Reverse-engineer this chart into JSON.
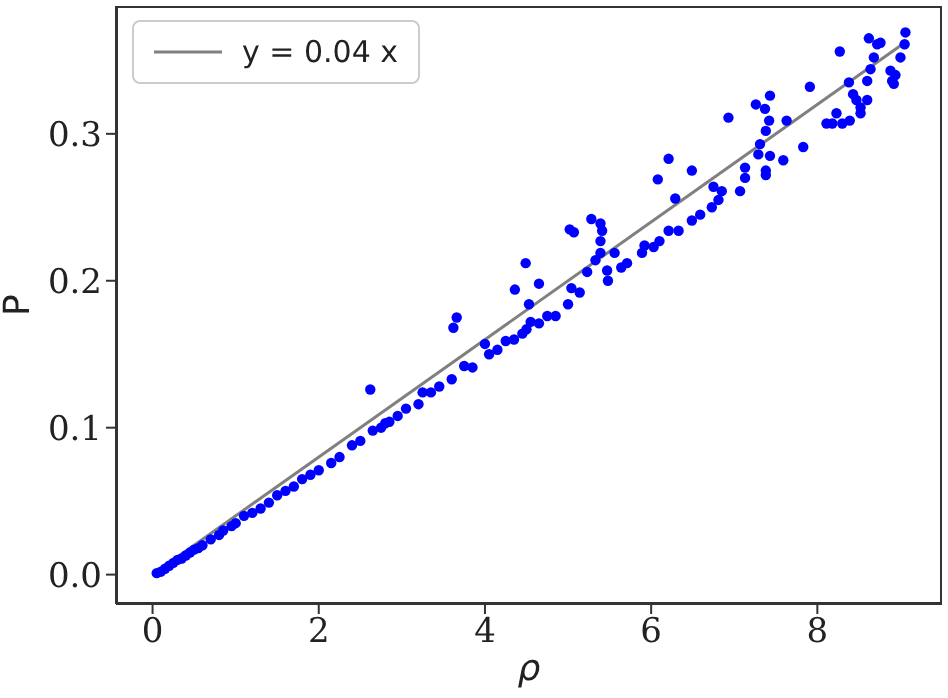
{
  "chart_data": {
    "type": "scatter",
    "xlabel": "ρ",
    "ylabel": "P",
    "xlim": [
      -0.44,
      9.5
    ],
    "ylim": [
      -0.02,
      0.387
    ],
    "xticks": [
      0,
      2,
      4,
      6,
      8
    ],
    "yticks": [
      {
        "value": 0,
        "label": "0.0"
      },
      0.1,
      0.2,
      0.3
    ],
    "legend": "top left",
    "series": [
      {
        "marker": "circle",
        "color": "#0000ff",
        "x": [
          0.05,
          0.1,
          0.15,
          0.2,
          0.25,
          0.3,
          0.35,
          0.4,
          0.45,
          0.5,
          0.55,
          0.6,
          0.7,
          0.8,
          0.85,
          0.95,
          1.0,
          1.1,
          1.2,
          1.3,
          1.4,
          1.5,
          1.6,
          1.7,
          1.8,
          1.9,
          2.0,
          2.15,
          2.25,
          2.4,
          2.5,
          2.62,
          2.65,
          2.75,
          2.8,
          2.85,
          2.95,
          3.05,
          3.2,
          3.25,
          3.35,
          3.45,
          3.6,
          3.62,
          3.66,
          3.75,
          3.85,
          4.0,
          4.05,
          4.15,
          4.25,
          4.35,
          4.36,
          4.45,
          4.49,
          4.5,
          4.53,
          4.55,
          4.65,
          4.65,
          4.75,
          4.85,
          5.0,
          5.02,
          5.04,
          5.07,
          5.14,
          5.23,
          5.28,
          5.33,
          5.39,
          5.39,
          5.39,
          5.41,
          5.47,
          5.48,
          5.56,
          5.64,
          5.71,
          5.89,
          5.92,
          6.03,
          6.08,
          6.1,
          6.21,
          6.21,
          6.29,
          6.33,
          6.49,
          6.49,
          6.59,
          6.73,
          6.75,
          6.81,
          6.85,
          6.93,
          7.07,
          7.13,
          7.13,
          7.26,
          7.29,
          7.31,
          7.37,
          7.38,
          7.38,
          7.38,
          7.42,
          7.43,
          7.43,
          7.59,
          7.63,
          7.83,
          7.91,
          8.11,
          8.18,
          8.23,
          8.27,
          8.3,
          8.38,
          8.39,
          8.43,
          8.47,
          8.52,
          8.52,
          8.6,
          8.6,
          8.62,
          8.64,
          8.68,
          8.72,
          8.76,
          8.88,
          8.9,
          8.92,
          8.94,
          9.0,
          9.05,
          9.06
        ],
        "values": [
          0.001,
          0.002,
          0.004,
          0.006,
          0.008,
          0.01,
          0.011,
          0.013,
          0.015,
          0.017,
          0.018,
          0.02,
          0.024,
          0.027,
          0.03,
          0.033,
          0.035,
          0.04,
          0.042,
          0.045,
          0.049,
          0.054,
          0.057,
          0.06,
          0.065,
          0.068,
          0.071,
          0.076,
          0.08,
          0.088,
          0.091,
          0.126,
          0.098,
          0.1,
          0.103,
          0.104,
          0.108,
          0.113,
          0.116,
          0.124,
          0.124,
          0.128,
          0.133,
          0.168,
          0.175,
          0.142,
          0.141,
          0.157,
          0.15,
          0.153,
          0.159,
          0.16,
          0.194,
          0.164,
          0.212,
          0.167,
          0.184,
          0.172,
          0.171,
          0.198,
          0.176,
          0.176,
          0.184,
          0.235,
          0.195,
          0.233,
          0.192,
          0.206,
          0.242,
          0.214,
          0.239,
          0.227,
          0.219,
          0.234,
          0.207,
          0.2,
          0.219,
          0.209,
          0.212,
          0.219,
          0.224,
          0.223,
          0.269,
          0.227,
          0.283,
          0.234,
          0.256,
          0.234,
          0.275,
          0.241,
          0.245,
          0.25,
          0.264,
          0.255,
          0.261,
          0.311,
          0.261,
          0.277,
          0.27,
          0.32,
          0.286,
          0.293,
          0.317,
          0.275,
          0.272,
          0.302,
          0.309,
          0.326,
          0.285,
          0.282,
          0.309,
          0.291,
          0.332,
          0.307,
          0.307,
          0.314,
          0.356,
          0.307,
          0.335,
          0.309,
          0.327,
          0.323,
          0.314,
          0.318,
          0.323,
          0.336,
          0.365,
          0.344,
          0.352,
          0.361,
          0.362,
          0.343,
          0.336,
          0.334,
          0.34,
          0.352,
          0.361,
          0.369
        ]
      },
      {
        "type": "line",
        "name": "y = 0.04 x",
        "color": "#808080",
        "x": [
          0.05,
          9.05
        ],
        "values": [
          0.002,
          0.362
        ]
      }
    ]
  }
}
